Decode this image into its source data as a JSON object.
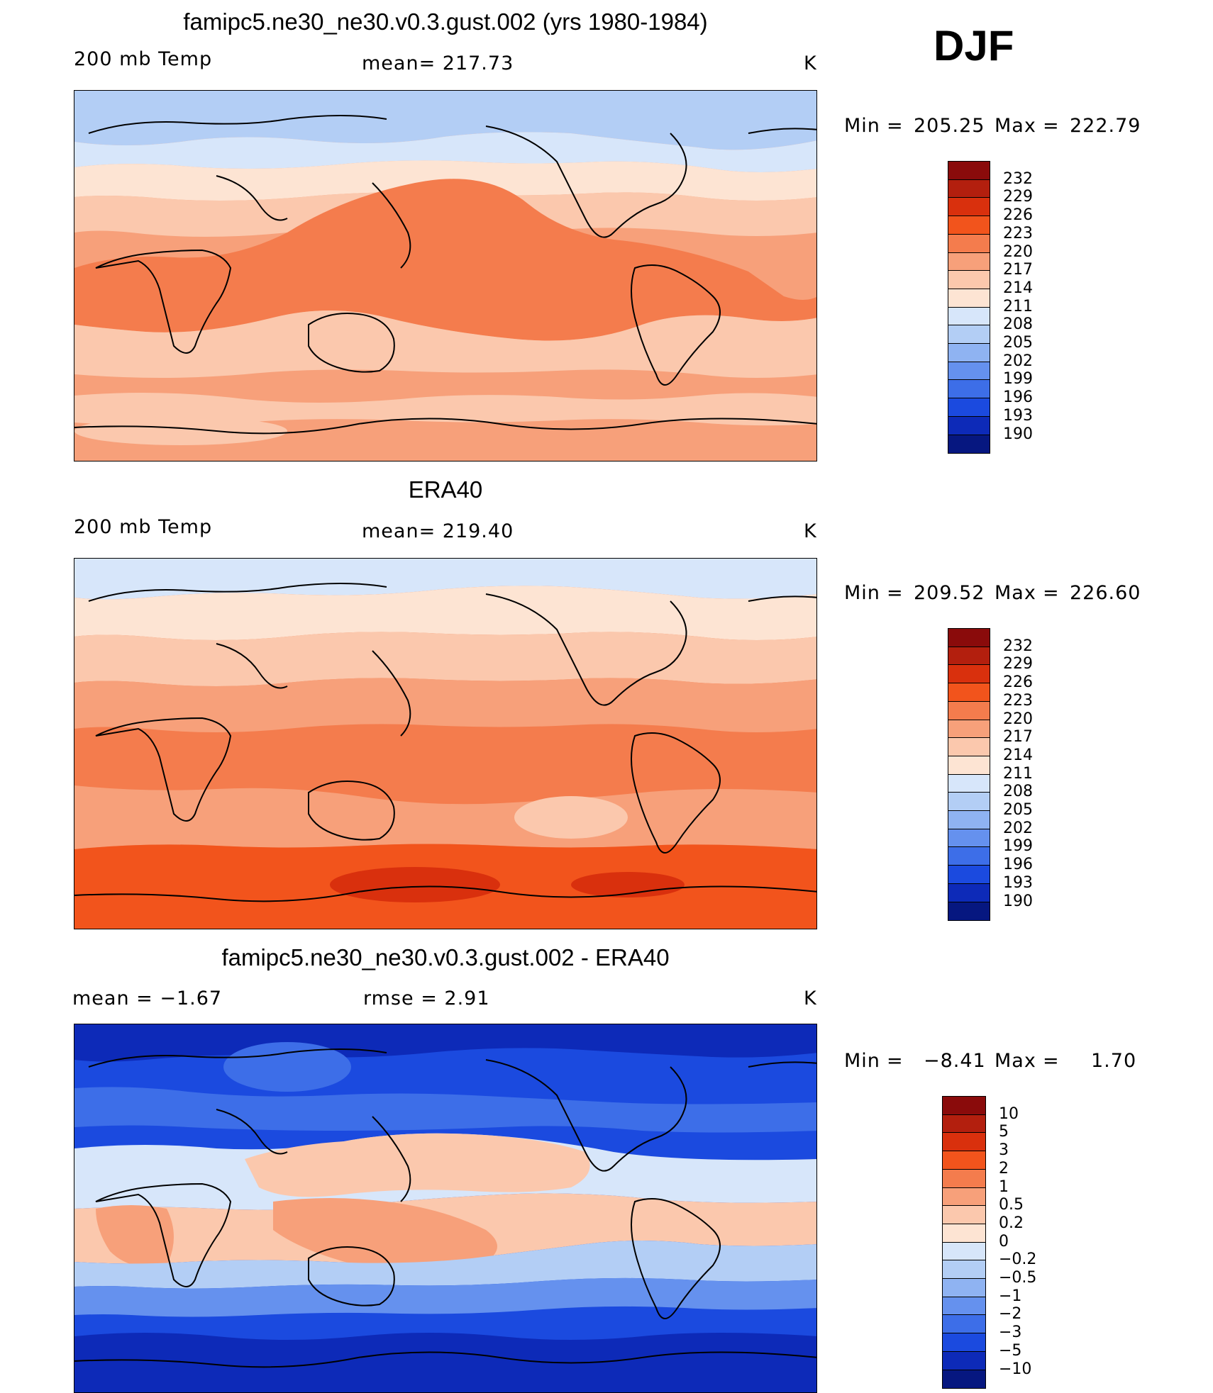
{
  "season": "DJF",
  "colors": {
    "ocean_land_outline": "#000000"
  },
  "panels": [
    {
      "title": "famipc5.ne30_ne30.v0.3.gust.002 (yrs 1980-1984)",
      "left_label": "200 mb Temp",
      "center_label": "mean= 217.73",
      "units": "K",
      "stats": {
        "min_label": "Min",
        "min": "205.25",
        "max_label": "Max",
        "max": "222.79"
      },
      "colorbar": {
        "levels": [
          "232",
          "229",
          "226",
          "223",
          "220",
          "217",
          "214",
          "211",
          "208",
          "205",
          "202",
          "199",
          "196",
          "193",
          "190"
        ],
        "colors": [
          "#8a0b0b",
          "#b31f0e",
          "#d9300d",
          "#f2541c",
          "#f47c4d",
          "#f7a07a",
          "#fbc8ad",
          "#fde4d3",
          "#d7e6fa",
          "#b3cef5",
          "#8fb3f2",
          "#6591ee",
          "#3d6ee8",
          "#1b4adf",
          "#0d2ab8",
          "#061780"
        ]
      }
    },
    {
      "title": "ERA40",
      "left_label": "200 mb Temp",
      "center_label": "mean= 219.40",
      "units": "K",
      "stats": {
        "min_label": "Min",
        "min": "209.52",
        "max_label": "Max",
        "max": "226.60"
      },
      "colorbar": {
        "levels": [
          "232",
          "229",
          "226",
          "223",
          "220",
          "217",
          "214",
          "211",
          "208",
          "205",
          "202",
          "199",
          "196",
          "193",
          "190"
        ],
        "colors": [
          "#8a0b0b",
          "#b31f0e",
          "#d9300d",
          "#f2541c",
          "#f47c4d",
          "#f7a07a",
          "#fbc8ad",
          "#fde4d3",
          "#d7e6fa",
          "#b3cef5",
          "#8fb3f2",
          "#6591ee",
          "#3d6ee8",
          "#1b4adf",
          "#0d2ab8",
          "#061780"
        ]
      }
    },
    {
      "title": "famipc5.ne30_ne30.v0.3.gust.002 - ERA40",
      "left_label": "mean =   −1.67",
      "center_label": "rmse =    2.91",
      "units": "K",
      "stats": {
        "min_label": "Min",
        "min": "−8.41",
        "max_label": "Max",
        "max": "1.70"
      },
      "colorbar": {
        "levels": [
          "10",
          "5",
          "3",
          "2",
          "1",
          "0.5",
          "0.2",
          "0",
          "−0.2",
          "−0.5",
          "−1",
          "−2",
          "−3",
          "−5",
          "−10"
        ],
        "colors": [
          "#8a0b0b",
          "#b31f0e",
          "#d9300d",
          "#f2541c",
          "#f47c4d",
          "#f7a07a",
          "#fbc8ad",
          "#fde4d3",
          "#d7e6fa",
          "#b3cef5",
          "#8fb3f2",
          "#6591ee",
          "#3d6ee8",
          "#1b4adf",
          "#0d2ab8",
          "#061780"
        ]
      }
    }
  ]
}
